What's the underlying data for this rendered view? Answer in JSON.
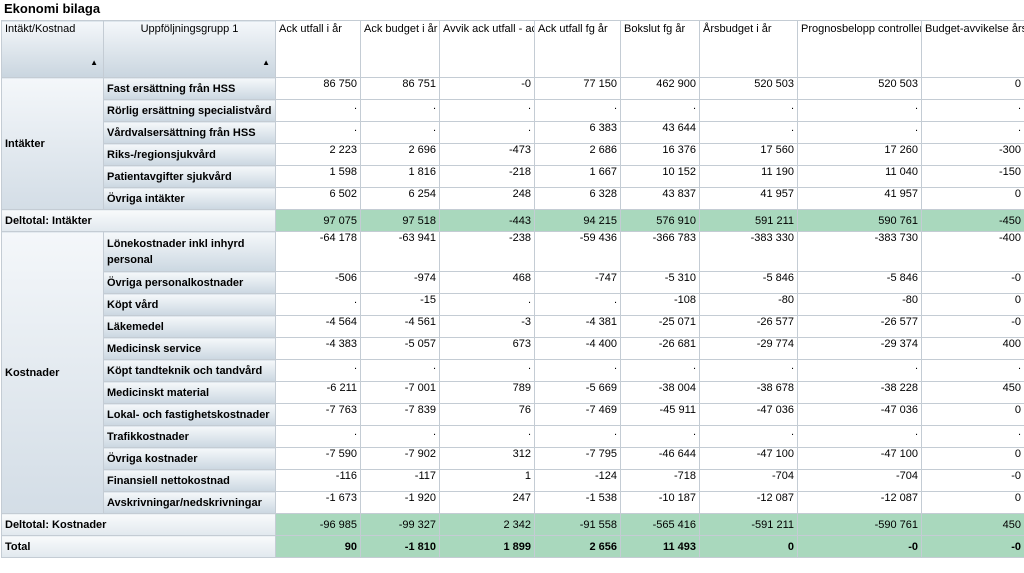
{
  "title": "Ekonomi bilaga",
  "headers": {
    "dim1": "Intäkt/Kostnad",
    "dim2": "Uppföljningsgrupp 1",
    "sort_icon": "▲",
    "cols": [
      "Ack utfall i år",
      "Ack budget i år",
      "Avvik ack utfall - ack budget",
      "Ack utfall fg år",
      "Bokslut fg år",
      "Årsbudget i år",
      "Prognosbelopp controller i år",
      "Budget-avvikelse årsprognos"
    ]
  },
  "groups": [
    {
      "label": "Intäkter",
      "rows": [
        {
          "label": "Fast ersättning från HSS",
          "values": [
            "86 750",
            "86 751",
            "-0",
            "77 150",
            "462 900",
            "520 503",
            "520 503",
            "0"
          ]
        },
        {
          "label": "Rörlig ersättning specialistvård",
          "values": [
            ".",
            ".",
            ".",
            ".",
            ".",
            ".",
            ".",
            "."
          ]
        },
        {
          "label": "Vårdvalsersättning från HSS",
          "values": [
            ".",
            ".",
            ".",
            "6 383",
            "43 644",
            ".",
            ".",
            "."
          ]
        },
        {
          "label": "Riks-/regionsjukvård",
          "values": [
            "2 223",
            "2 696",
            "-473",
            "2 686",
            "16 376",
            "17 560",
            "17 260",
            "-300"
          ]
        },
        {
          "label": "Patientavgifter sjukvård",
          "values": [
            "1 598",
            "1 816",
            "-218",
            "1 667",
            "10 152",
            "11 190",
            "11 040",
            "-150"
          ]
        },
        {
          "label": "Övriga intäkter",
          "values": [
            "6 502",
            "6 254",
            "248",
            "6 328",
            "43 837",
            "41 957",
            "41 957",
            "0"
          ]
        }
      ],
      "subtotal": {
        "label": "Deltotal: Intäkter",
        "values": [
          "97 075",
          "97 518",
          "-443",
          "94 215",
          "576 910",
          "591 211",
          "590 761",
          "-450"
        ]
      }
    },
    {
      "label": "Kostnader",
      "rows": [
        {
          "label": "Lönekostnader inkl inhyrd personal",
          "values": [
            "-64 178",
            "-63 941",
            "-238",
            "-59 436",
            "-366 783",
            "-383 330",
            "-383 730",
            "-400"
          ]
        },
        {
          "label": "Övriga personalkostnader",
          "values": [
            "-506",
            "-974",
            "468",
            "-747",
            "-5 310",
            "-5 846",
            "-5 846",
            "-0"
          ]
        },
        {
          "label": "Köpt vård",
          "values": [
            ".",
            "-15",
            ".",
            ".",
            "-108",
            "-80",
            "-80",
            "0"
          ]
        },
        {
          "label": "Läkemedel",
          "values": [
            "-4 564",
            "-4 561",
            "-3",
            "-4 381",
            "-25 071",
            "-26 577",
            "-26 577",
            "-0"
          ]
        },
        {
          "label": "Medicinsk service",
          "values": [
            "-4 383",
            "-5 057",
            "673",
            "-4 400",
            "-26 681",
            "-29 774",
            "-29 374",
            "400"
          ]
        },
        {
          "label": "Köpt tandteknik och tandvård",
          "values": [
            ".",
            ".",
            ".",
            ".",
            ".",
            ".",
            ".",
            "."
          ]
        },
        {
          "label": "Medicinskt material",
          "values": [
            "-6 211",
            "-7 001",
            "789",
            "-5 669",
            "-38 004",
            "-38 678",
            "-38 228",
            "450"
          ]
        },
        {
          "label": "Lokal- och fastighetskostnader",
          "values": [
            "-7 763",
            "-7 839",
            "76",
            "-7 469",
            "-45 911",
            "-47 036",
            "-47 036",
            "0"
          ]
        },
        {
          "label": "Trafikkostnader",
          "values": [
            ".",
            ".",
            ".",
            ".",
            ".",
            ".",
            ".",
            "."
          ]
        },
        {
          "label": "Övriga kostnader",
          "values": [
            "-7 590",
            "-7 902",
            "312",
            "-7 795",
            "-46 644",
            "-47 100",
            "-47 100",
            "0"
          ]
        },
        {
          "label": "Finansiell nettokostnad",
          "values": [
            "-116",
            "-117",
            "1",
            "-124",
            "-718",
            "-704",
            "-704",
            "-0"
          ]
        },
        {
          "label": "Avskrivningar/nedskrivningar",
          "values": [
            "-1 673",
            "-1 920",
            "247",
            "-1 538",
            "-10 187",
            "-12 087",
            "-12 087",
            "0"
          ]
        }
      ],
      "subtotal": {
        "label": "Deltotal: Kostnader",
        "values": [
          "-96 985",
          "-99 327",
          "2 342",
          "-91 558",
          "-565 416",
          "-591 211",
          "-590 761",
          "450"
        ]
      }
    }
  ],
  "total": {
    "label": "Total",
    "values": [
      "90",
      "-1 810",
      "1 899",
      "2 656",
      "11 493",
      "0",
      "-0",
      "-0"
    ]
  }
}
